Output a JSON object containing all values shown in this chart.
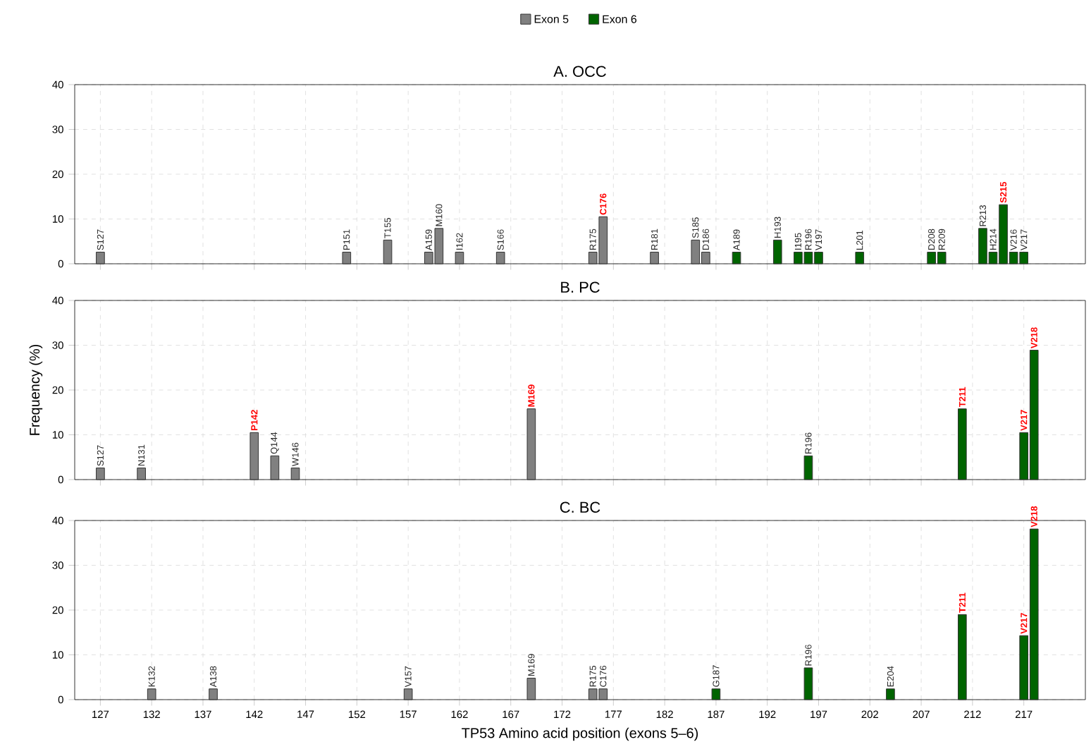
{
  "chart_data": [
    {
      "type": "bar",
      "title": "A. OCC",
      "legend": "top",
      "grid": true,
      "tick_labels": "y",
      "xlim": [
        124.5,
        223
      ],
      "xticks": [
        127,
        132,
        137,
        142,
        147,
        152,
        157,
        162,
        167,
        172,
        177,
        182,
        187,
        192,
        197,
        202,
        207,
        212,
        217
      ],
      "ylim": [
        0,
        40
      ],
      "yticks": [
        0,
        10,
        20,
        30,
        40
      ],
      "series": [
        {
          "name": "Exon 5",
          "color": "#808080",
          "x": [
            127,
            151,
            155,
            159,
            160,
            162,
            166,
            175,
            176,
            181,
            185,
            186
          ],
          "values": [
            2.6,
            2.6,
            5.3,
            2.6,
            7.9,
            2.6,
            2.6,
            2.6,
            10.5,
            2.6,
            5.3,
            2.6
          ],
          "value_labels": [
            "S127",
            "P151",
            "T155",
            "A159",
            "M160",
            "I162",
            "S166",
            "R175",
            "**C176**",
            "R181",
            "S185",
            "D186"
          ]
        },
        {
          "name": "Exon 6",
          "color": "#006400",
          "x": [
            189,
            193,
            195,
            196,
            197,
            201,
            208,
            209,
            213,
            214,
            215,
            216,
            217
          ],
          "values": [
            2.6,
            5.3,
            2.6,
            2.6,
            2.6,
            2.6,
            2.6,
            2.6,
            7.9,
            2.6,
            13.2,
            2.6,
            2.6
          ],
          "value_labels": [
            "A189",
            "H193",
            "I195",
            "R196",
            "V197",
            "L201",
            "D208",
            "R209",
            "R213",
            "H214",
            "**S215**",
            "V216",
            "V217"
          ]
        }
      ]
    },
    {
      "type": "bar",
      "title": "B. PC",
      "ylabel": "Frequency (%)",
      "grid": true,
      "tick_labels": "y",
      "xlim": [
        124.5,
        223
      ],
      "xticks": [
        127,
        132,
        137,
        142,
        147,
        152,
        157,
        162,
        167,
        172,
        177,
        182,
        187,
        192,
        197,
        202,
        207,
        212,
        217
      ],
      "ylim": [
        0,
        40
      ],
      "yticks": [
        0,
        10,
        20,
        30,
        40
      ],
      "series": [
        {
          "color": "#808080",
          "x": [
            127,
            131,
            142,
            144,
            146,
            169
          ],
          "values": [
            2.6,
            2.6,
            10.5,
            5.3,
            2.6,
            15.8
          ],
          "value_labels": [
            "S127",
            "N131",
            "**P142**",
            "Q144",
            "W146",
            "**M169**"
          ]
        },
        {
          "color": "#006400",
          "x": [
            196,
            211,
            217,
            218
          ],
          "values": [
            5.3,
            15.8,
            10.5,
            28.9
          ],
          "value_labels": [
            "R196",
            "**T211**",
            "**V217**",
            "**V218**"
          ]
        }
      ]
    },
    {
      "type": "bar",
      "title": "C. BC",
      "xlabel": "TP53 Amino acid position (exons 5–6)",
      "grid": true,
      "xlim": [
        124.5,
        223
      ],
      "xticks": [
        127,
        132,
        137,
        142,
        147,
        152,
        157,
        162,
        167,
        172,
        177,
        182,
        187,
        192,
        197,
        202,
        207,
        212,
        217
      ],
      "ylim": [
        0,
        40
      ],
      "yticks": [
        0,
        10,
        20,
        30,
        40
      ],
      "series": [
        {
          "color": "#808080",
          "x": [
            132,
            138,
            157,
            169,
            175,
            176
          ],
          "values": [
            2.4,
            2.4,
            2.4,
            4.8,
            2.4,
            2.4
          ],
          "value_labels": [
            "K132",
            "A138",
            "V157",
            "M169",
            "R175",
            "C176"
          ]
        },
        {
          "color": "#006400",
          "x": [
            187,
            196,
            204,
            211,
            217,
            218
          ],
          "values": [
            2.4,
            7.1,
            2.4,
            19.0,
            14.3,
            38.1
          ],
          "value_labels": [
            "G187",
            "R196",
            "E204",
            "**T211**",
            "**V217**",
            "**V218**"
          ]
        }
      ]
    }
  ]
}
